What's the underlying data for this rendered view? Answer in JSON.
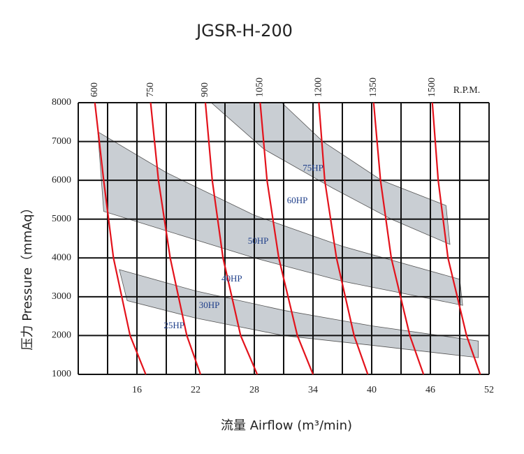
{
  "chart_data": {
    "type": "line",
    "title": "JGSR-H-200",
    "x_label": "流量 Airflow (m³/min)",
    "y_label": "压力 Pressure（mmAq）",
    "rpm_unit": "R.P.M.",
    "xlim": [
      10,
      52
    ],
    "ylim": [
      1000,
      8000
    ],
    "xticks": [
      16,
      22,
      28,
      34,
      40,
      46,
      52
    ],
    "xgrid": [
      10,
      13,
      16,
      19,
      22,
      25,
      28,
      31,
      34,
      37,
      40,
      43,
      46,
      49,
      52
    ],
    "yticks": [
      1000,
      2000,
      3000,
      4000,
      5000,
      6000,
      7000,
      8000
    ],
    "grid": true,
    "series": [
      {
        "name": "600",
        "color": "#e3121b",
        "x": [
          11.7,
          12.6,
          13.6,
          15.3,
          16.9
        ],
        "y": [
          8000,
          6000,
          4000,
          2000,
          1000
        ]
      },
      {
        "name": "750",
        "color": "#e3121b",
        "x": [
          17.4,
          18.2,
          19.4,
          21.1,
          22.5
        ],
        "y": [
          8000,
          6000,
          4000,
          2000,
          1000
        ]
      },
      {
        "name": "900",
        "color": "#e3121b",
        "x": [
          23.0,
          23.7,
          24.8,
          26.6,
          28.3
        ],
        "y": [
          8000,
          6000,
          4000,
          2000,
          1000
        ]
      },
      {
        "name": "1050",
        "color": "#e3121b",
        "x": [
          28.6,
          29.3,
          30.5,
          32.4,
          34.0
        ],
        "y": [
          8000,
          6000,
          4000,
          2000,
          1000
        ]
      },
      {
        "name": "1200",
        "color": "#e3121b",
        "x": [
          34.6,
          35.2,
          36.4,
          38.2,
          39.6
        ],
        "y": [
          8000,
          6000,
          4000,
          2000,
          1000
        ]
      },
      {
        "name": "1350",
        "color": "#e3121b",
        "x": [
          40.2,
          40.9,
          42.0,
          43.9,
          45.3
        ],
        "y": [
          8000,
          6000,
          4000,
          2000,
          1000
        ]
      },
      {
        "name": "1500",
        "color": "#e3121b",
        "x": [
          46.2,
          46.8,
          47.8,
          49.7,
          51.1
        ],
        "y": [
          8000,
          6000,
          4000,
          2000,
          1000
        ]
      }
    ],
    "bands": [
      {
        "color": "#c9ced3",
        "upper_x": [
          14.2,
          22,
          31,
          40,
          50.9
        ],
        "upper_y": [
          3700,
          3150,
          2650,
          2250,
          1860
        ],
        "lower_x": [
          15,
          22,
          31,
          40,
          50.9
        ],
        "lower_y": [
          2900,
          2450,
          2000,
          1750,
          1430
        ]
      },
      {
        "color": "#c9ced3",
        "upper_x": [
          12,
          19,
          28,
          37,
          49
        ],
        "upper_y": [
          7250,
          6200,
          5100,
          4300,
          3450
        ],
        "lower_x": [
          12.6,
          19,
          28,
          37,
          49.3
        ],
        "lower_y": [
          5200,
          4700,
          4000,
          3400,
          2780
        ]
      },
      {
        "color": "#c9ced3",
        "upper_x": [
          30.8,
          35,
          41,
          47.6
        ],
        "upper_y": [
          8000,
          7000,
          6000,
          5350
        ],
        "lower_x": [
          23.6,
          29,
          36,
          42,
          48
        ],
        "lower_y": [
          8000,
          6800,
          5800,
          5000,
          4350
        ]
      }
    ],
    "annotations": [
      {
        "text": "75HP",
        "x": 34.0,
        "y": 6300
      },
      {
        "text": "60HP",
        "x": 32.4,
        "y": 5460
      },
      {
        "text": "50HP",
        "x": 28.4,
        "y": 4420
      },
      {
        "text": "40HP",
        "x": 25.7,
        "y": 3450
      },
      {
        "text": "30HP",
        "x": 23.4,
        "y": 2760
      },
      {
        "text": "25HP",
        "x": 19.8,
        "y": 2240
      }
    ]
  }
}
